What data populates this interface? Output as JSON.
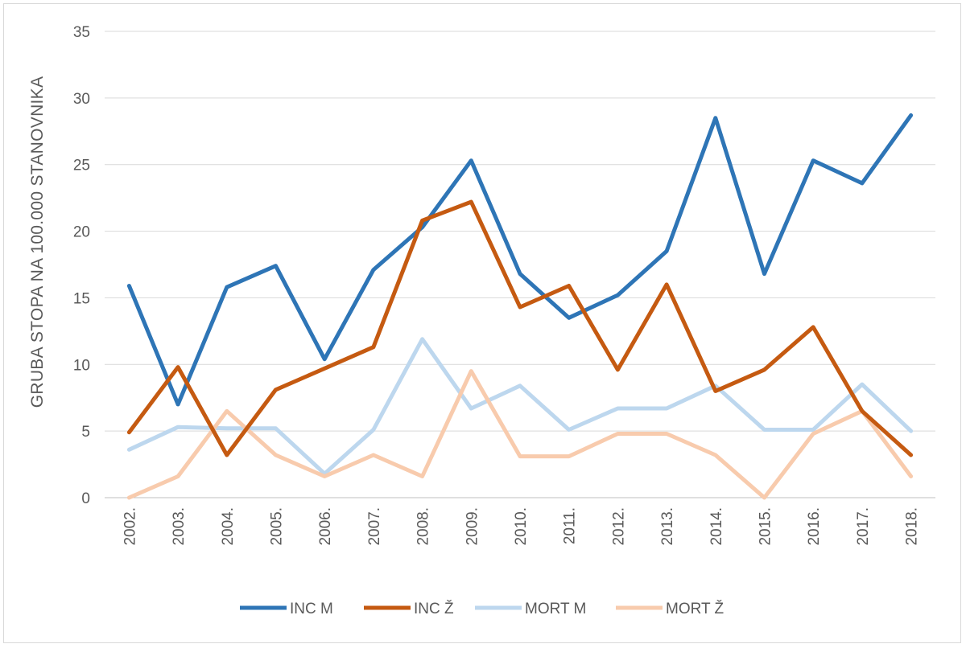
{
  "chart_data": {
    "type": "line",
    "title": "",
    "xlabel": "",
    "ylabel": "GRUBA STOPA NA 100.000 STANOVNIKA",
    "ylim": [
      0,
      35
    ],
    "yticks": [
      0,
      5,
      10,
      15,
      20,
      25,
      30,
      35
    ],
    "grid": true,
    "legend_position": "bottom",
    "categories": [
      "2002.",
      "2003.",
      "2004.",
      "2005.",
      "2006.",
      "2007.",
      "2008.",
      "2009.",
      "2010.",
      "2011.",
      "2012.",
      "2013.",
      "2014.",
      "2015.",
      "2016.",
      "2017.",
      "2018."
    ],
    "series": [
      {
        "name": "INC M",
        "color": "#2e75b6",
        "values": [
          15.9,
          7.0,
          15.8,
          17.4,
          10.4,
          17.1,
          20.3,
          25.3,
          16.8,
          13.5,
          15.2,
          18.5,
          28.5,
          16.8,
          25.3,
          23.6,
          28.7
        ]
      },
      {
        "name": "INC Ž",
        "color": "#c55a11",
        "values": [
          4.9,
          9.8,
          3.2,
          8.1,
          9.7,
          11.3,
          20.8,
          22.2,
          14.3,
          15.9,
          9.6,
          16.0,
          8.0,
          9.6,
          12.8,
          6.5,
          3.2
        ]
      },
      {
        "name": "MORT M",
        "color": "#bdd7ee",
        "values": [
          3.6,
          5.3,
          5.2,
          5.2,
          1.8,
          5.1,
          11.9,
          6.7,
          8.4,
          5.1,
          6.7,
          6.7,
          8.4,
          5.1,
          5.1,
          8.5,
          5.0
        ]
      },
      {
        "name": "MORT Ž",
        "color": "#f8cbad",
        "values": [
          0.0,
          1.6,
          6.5,
          3.2,
          1.6,
          3.2,
          1.6,
          9.5,
          3.1,
          3.1,
          4.8,
          4.8,
          3.2,
          0.0,
          4.8,
          6.5,
          1.6
        ]
      }
    ]
  }
}
